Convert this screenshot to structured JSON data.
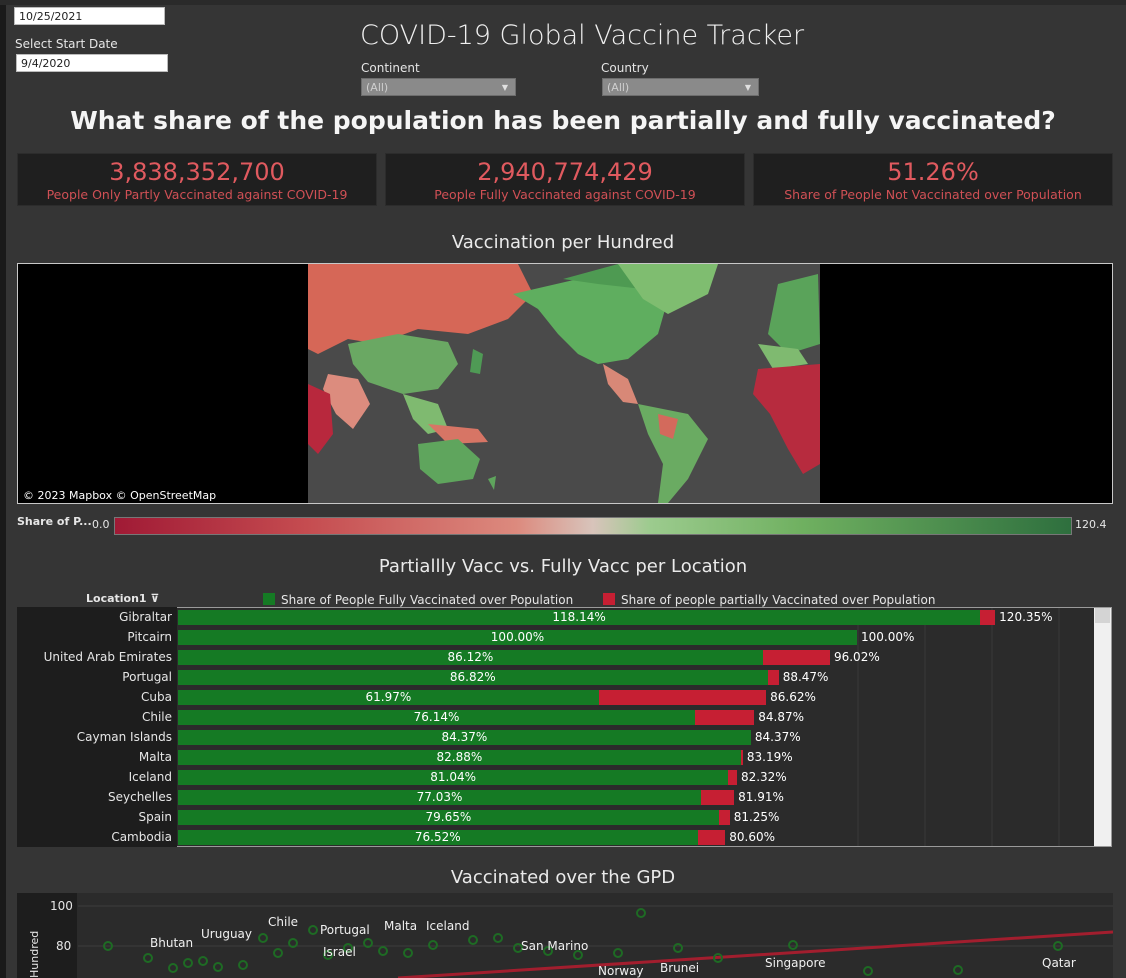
{
  "filters": {
    "end_date_value": "10/25/2021",
    "start_date_label": "Select Start Date",
    "start_date_value": "9/4/2020",
    "continent_label": "Continent",
    "continent_value": "(All)",
    "country_label": "Country",
    "country_value": "(All)"
  },
  "header": {
    "title": "COVID-19 Global Vaccine Tracker",
    "question": "What share of the population has been partially and fully vaccinated?"
  },
  "kpis": [
    {
      "value": "3,838,352,700",
      "label": "People Only Partly Vaccinated against COVID-19"
    },
    {
      "value": "2,940,774,429",
      "label": "People Fully Vaccinated against COVID-19"
    },
    {
      "value": "51.26%",
      "label": "Share of People Not Vaccinated over Population"
    }
  ],
  "map": {
    "title": "Vaccination per Hundred",
    "credit": "© 2023 Mapbox  © OpenStreetMap",
    "legend_label": "Share of P...",
    "legend_min": "0.0",
    "legend_max": "120.4",
    "colors": {
      "low": "#a01a35",
      "mid": "#d8c4bb",
      "high": "#2e6f3e"
    }
  },
  "bars": {
    "title": "Partiallly Vacc vs. Fully Vacc per Location",
    "column_header": "Location1",
    "legend": [
      {
        "name": "Share of People Fully Vaccinated over Population",
        "color": "#157a24"
      },
      {
        "name": "Share of people partially Vaccinated over Population",
        "color": "#c61f33"
      }
    ],
    "rows": [
      {
        "location": "Gibraltar",
        "full": 118.14,
        "total": 120.35,
        "full_label": "118.14%",
        "total_label": "120.35%"
      },
      {
        "location": "Pitcairn",
        "full": 100.0,
        "total": 100.0,
        "full_label": "100.00%",
        "total_label": "100.00%"
      },
      {
        "location": "United Arab Emirates",
        "full": 86.12,
        "total": 96.02,
        "full_label": "86.12%",
        "total_label": "96.02%"
      },
      {
        "location": "Portugal",
        "full": 86.82,
        "total": 88.47,
        "full_label": "86.82%",
        "total_label": "88.47%"
      },
      {
        "location": "Cuba",
        "full": 61.97,
        "total": 86.62,
        "full_label": "61.97%",
        "total_label": "86.62%"
      },
      {
        "location": "Chile",
        "full": 76.14,
        "total": 84.87,
        "full_label": "76.14%",
        "total_label": "84.87%"
      },
      {
        "location": "Cayman Islands",
        "full": 84.37,
        "total": 84.37,
        "full_label": "84.37%",
        "total_label": "84.37%"
      },
      {
        "location": "Malta",
        "full": 82.88,
        "total": 83.19,
        "full_label": "82.88%",
        "total_label": "83.19%"
      },
      {
        "location": "Iceland",
        "full": 81.04,
        "total": 82.32,
        "full_label": "81.04%",
        "total_label": "82.32%"
      },
      {
        "location": "Seychelles",
        "full": 77.03,
        "total": 81.91,
        "full_label": "77.03%",
        "total_label": "81.91%"
      },
      {
        "location": "Spain",
        "full": 79.65,
        "total": 81.25,
        "full_label": "79.65%",
        "total_label": "81.25%"
      },
      {
        "location": "Cambodia",
        "full": 76.52,
        "total": 80.6,
        "full_label": "76.52%",
        "total_label": "80.60%"
      }
    ]
  },
  "scatter": {
    "title": "Vaccinated over the GPD",
    "ylabel": "Hundred",
    "y_ticks": [
      "100",
      "80"
    ],
    "countries": [
      "Bhutan",
      "Uruguay",
      "Chile",
      "Portugal",
      "Israel",
      "Malta",
      "Iceland",
      "San Marino",
      "Norway",
      "Brunei",
      "Singapore",
      "Qatar"
    ]
  }
}
